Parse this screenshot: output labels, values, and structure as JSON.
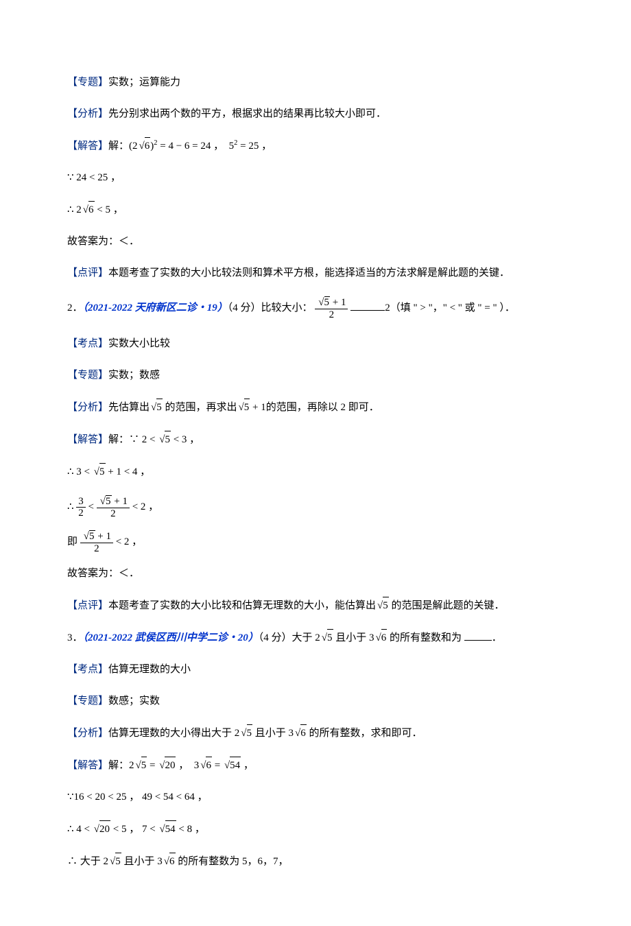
{
  "colors": {
    "text": "#000000",
    "tag": "#0033cc",
    "darktag": "#002a80",
    "background": "#ffffff"
  },
  "labels": {
    "zhuanti": "【专题】",
    "fenxi": "【分析】",
    "jieda": "【解答】",
    "dianping": "【点评】",
    "kaodian": "【考点】"
  },
  "q1": {
    "zhuanti_text": "实数；运算能力",
    "fenxi_text": "先分别求出两个数的平方，根据求出的结果再比较大小即可．",
    "jieda_prefix": "解：",
    "jieda_expr1a": "(2",
    "jieda_expr1_rad": "6",
    "jieda_expr1b": ")",
    "jieda_expr1_sup": "2",
    "jieda_expr1c": " = 4 − 6 = 24 ，",
    "jieda_expr2a": "5",
    "jieda_expr2_sup": "2",
    "jieda_expr2b": " = 25 ，",
    "line2": "∵ 24 < 25 ，",
    "line3a": "∴ 2",
    "line3_rad": "6",
    "line3b": " < 5 ，",
    "answer": "故答案为：＜．",
    "dianping_text": "本题考查了实数的大小比较法则和算术平方根，能选择适当的方法求解是解此题的关键．"
  },
  "q2": {
    "num": "2．",
    "source": "（2021-2022 天府新区二诊・19）",
    "points": "（4 分）比较大小：",
    "frac_num_a": "",
    "frac_num_rad": "5",
    "frac_num_b": " + 1",
    "frac_den": "2",
    "after_blank": "2（填 \" > \"，\"  < \" 或 \" = \"  ）．",
    "kaodian_text": "实数大小比较",
    "zhuanti_text": "实数；数感",
    "fenxi_a": "先估算出",
    "fenxi_rad1": "5",
    "fenxi_b": " 的范围，再求出",
    "fenxi_rad2": "5",
    "fenxi_c": " + 1的范围，再除以 2 即可．",
    "jieda_prefix": "解：∵ 2 < ",
    "jieda_rad": "5",
    "jieda_suffix": " < 3 ，",
    "step1a": "∴ 3 < ",
    "step1_rad": "5",
    "step1b": " + 1 < 4 ，",
    "step2_prefix": "∴ ",
    "step2_f1_num": "3",
    "step2_f1_den": "2",
    "step2_mid": " < ",
    "step2_f2_num_rad": "5",
    "step2_f2_num_b": " + 1",
    "step2_f2_den": "2",
    "step2_suffix": " < 2 ，",
    "step3_prefix": "即 ",
    "step3_num_rad": "5",
    "step3_num_b": " + 1",
    "step3_den": "2",
    "step3_suffix": " < 2 ，",
    "answer": "故答案为：＜．",
    "dianping_a": "本题考查了实数的大小比较和估算无理数的大小，能估算出",
    "dianping_rad": "5",
    "dianping_b": " 的范围是解此题的关键．"
  },
  "q3": {
    "num": "3．",
    "source": "（2021-2022 武侯区西川中学二诊・20）",
    "points_a": "（4 分）大于 2",
    "points_rad1": "5",
    "points_b": " 且小于 3",
    "points_rad2": "6",
    "points_c": " 的所有整数和为 ",
    "points_d": "．",
    "kaodian_text": "估算无理数的大小",
    "zhuanti_text": "数感；实数",
    "fenxi_a": "估算无理数的大小得出大于 2",
    "fenxi_rad1": "5",
    "fenxi_b": " 且小于 3",
    "fenxi_rad2": "6",
    "fenxi_c": " 的所有整数，求和即可．",
    "jieda_prefix": "解：",
    "jieda_1a": "2",
    "jieda_1_rad": "5",
    "jieda_1b": " = ",
    "jieda_1_rad2": "20",
    "jieda_1c": " ，",
    "jieda_2a": "3",
    "jieda_2_rad": "6",
    "jieda_2b": " = ",
    "jieda_2_rad2": "54",
    "jieda_2c": " ，",
    "step1": "∵16 < 20 < 25 ， 49 < 54 < 64 ，",
    "step2a": "∴ 4 < ",
    "step2_rad1": "20",
    "step2b": " < 5 ， 7 < ",
    "step2_rad2": "54",
    "step2c": " < 8 ，",
    "step3a": "∴ 大于 2",
    "step3_rad1": "5",
    "step3b": " 且小于 3",
    "step3_rad2": "6",
    "step3c": " 的所有整数为 5，6，7，"
  }
}
